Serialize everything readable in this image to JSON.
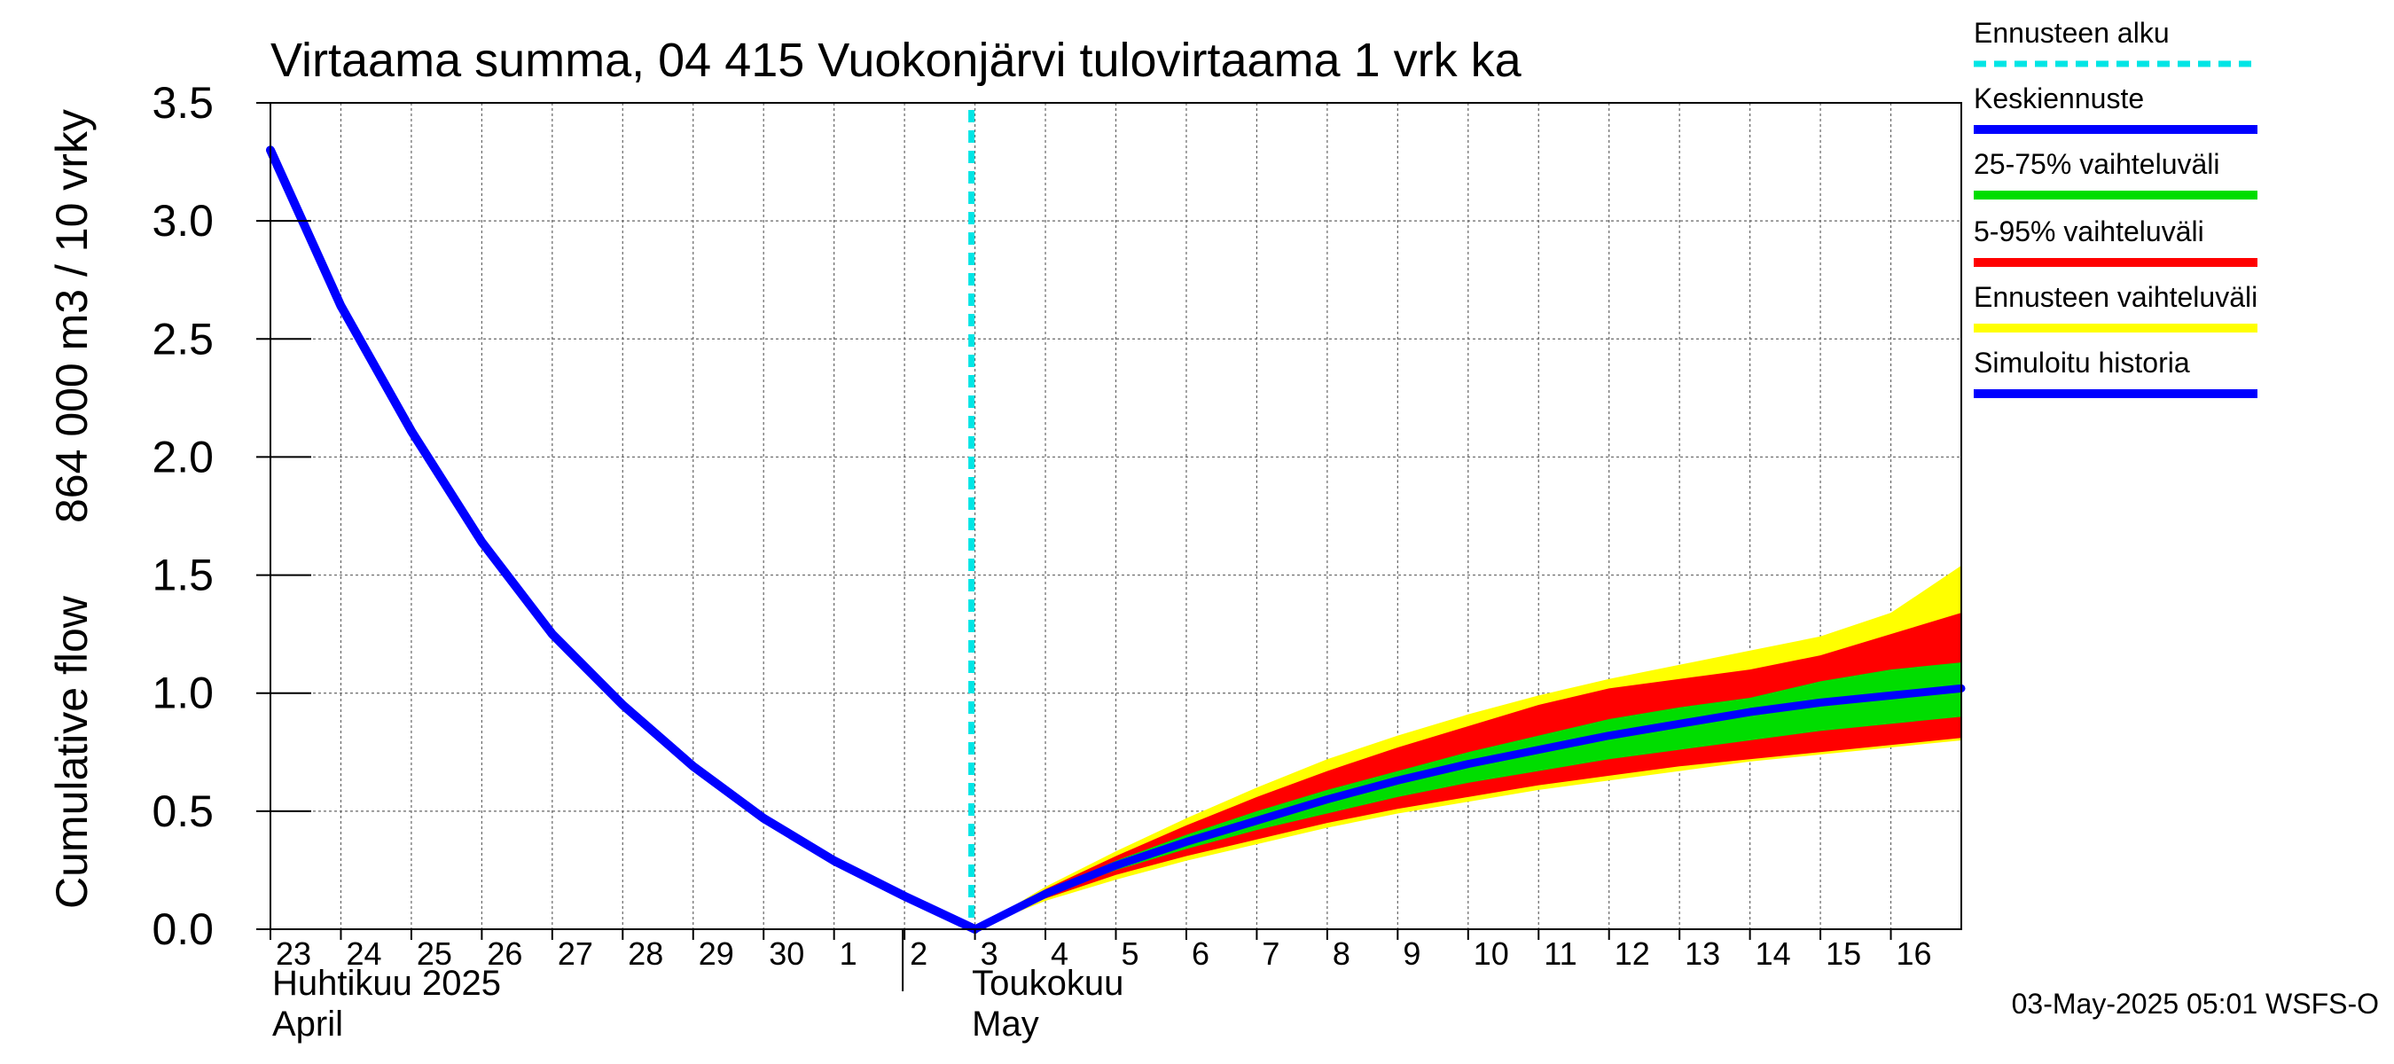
{
  "chart_data": {
    "type": "area",
    "title": "Virtaama summa, 04 415 Vuokonjärvi tulovirtaama 1 vrk ka",
    "ylabel_line1": "Cumulative flow",
    "ylabel_line2": "864 000 m3 / 10 vrky",
    "ylim": [
      0,
      3.5
    ],
    "yticks": [
      0.0,
      0.5,
      1.0,
      1.5,
      2.0,
      2.5,
      3.0,
      3.5
    ],
    "ytick_labels": [
      "0.0",
      "0.5",
      "1.0",
      "1.5",
      "2.0",
      "2.5",
      "3.0",
      "3.5"
    ],
    "x_start_label_day": 23,
    "day_labels": [
      "23",
      "24",
      "25",
      "26",
      "27",
      "28",
      "29",
      "30",
      "1",
      "2",
      "3",
      "4",
      "5",
      "6",
      "7",
      "8",
      "9",
      "10",
      "11",
      "12",
      "13",
      "14",
      "15",
      "16"
    ],
    "month_labels": [
      {
        "line1": "Huhtikuu  2025",
        "line2": "April",
        "day_index": 0
      },
      {
        "line1": "Toukokuu",
        "line2": "May",
        "day_index": 9
      }
    ],
    "forecast_start_day": 9.95,
    "series": {
      "history": {
        "name": "Simuloitu historia",
        "x": [
          0,
          1,
          2,
          3,
          4,
          5,
          6,
          7,
          8,
          9,
          10
        ],
        "y": [
          3.3,
          2.64,
          2.11,
          1.64,
          1.25,
          0.95,
          0.69,
          0.47,
          0.29,
          0.14,
          0.0
        ]
      },
      "median": {
        "name": "Keskiennuste",
        "x": [
          10,
          11,
          12,
          13,
          14,
          15,
          16,
          17,
          18,
          19,
          20,
          21,
          22,
          23,
          24
        ],
        "y": [
          0.0,
          0.15,
          0.27,
          0.37,
          0.46,
          0.55,
          0.63,
          0.7,
          0.76,
          0.82,
          0.87,
          0.92,
          0.96,
          0.99,
          1.02
        ]
      },
      "band_25_75": {
        "name": "25-75% vaihteluväli",
        "x": [
          10,
          11,
          12,
          13,
          14,
          15,
          16,
          17,
          18,
          19,
          20,
          21,
          22,
          23,
          24
        ],
        "low": [
          0.0,
          0.14,
          0.25,
          0.34,
          0.42,
          0.49,
          0.56,
          0.62,
          0.67,
          0.72,
          0.76,
          0.8,
          0.84,
          0.87,
          0.9
        ],
        "high": [
          0.0,
          0.16,
          0.29,
          0.4,
          0.5,
          0.59,
          0.67,
          0.75,
          0.82,
          0.89,
          0.94,
          0.98,
          1.05,
          1.1,
          1.13
        ]
      },
      "band_5_95": {
        "name": "5-95% vaihteluväli",
        "x": [
          10,
          11,
          12,
          13,
          14,
          15,
          16,
          17,
          18,
          19,
          20,
          21,
          22,
          23,
          24
        ],
        "low": [
          0.0,
          0.13,
          0.23,
          0.31,
          0.38,
          0.45,
          0.51,
          0.56,
          0.61,
          0.65,
          0.69,
          0.72,
          0.75,
          0.78,
          0.81
        ],
        "high": [
          0.0,
          0.17,
          0.31,
          0.44,
          0.56,
          0.67,
          0.77,
          0.86,
          0.95,
          1.02,
          1.06,
          1.1,
          1.16,
          1.25,
          1.34
        ]
      },
      "band_full": {
        "name": "Ennusteen vaihteluväli",
        "x": [
          10,
          11,
          12,
          13,
          14,
          15,
          16,
          17,
          18,
          19,
          20,
          21,
          22,
          23,
          24
        ],
        "low": [
          0.0,
          0.12,
          0.21,
          0.29,
          0.36,
          0.43,
          0.49,
          0.54,
          0.59,
          0.63,
          0.67,
          0.71,
          0.74,
          0.77,
          0.8
        ],
        "high": [
          0.0,
          0.18,
          0.33,
          0.47,
          0.6,
          0.72,
          0.82,
          0.91,
          0.99,
          1.06,
          1.12,
          1.18,
          1.24,
          1.34,
          1.54
        ]
      }
    }
  },
  "legend": {
    "items": [
      {
        "label": "Ennusteen alku",
        "color": "#00e5e5",
        "style": "dashed"
      },
      {
        "label": "Keskiennuste",
        "color": "#0000ff",
        "style": "solid"
      },
      {
        "label": "25-75% vaihteluväli",
        "color": "#00dd00",
        "style": "solid"
      },
      {
        "label": "5-95% vaihteluväli",
        "color": "#ff0000",
        "style": "solid"
      },
      {
        "label": "Ennusteen vaihteluväli",
        "color": "#ffff00",
        "style": "solid"
      },
      {
        "label": "Simuloitu historia",
        "color": "#0000ff",
        "style": "solid"
      }
    ]
  },
  "footer": {
    "timestamp": "03-May-2025 05:01 WSFS-O"
  },
  "colors": {
    "history": "#0000ff",
    "median": "#0000ff",
    "band_25_75": "#00dd00",
    "band_5_95": "#ff0000",
    "band_full": "#ffff00",
    "forecast_start": "#00e5e5",
    "grid": "#666666",
    "axis": "#000000"
  }
}
